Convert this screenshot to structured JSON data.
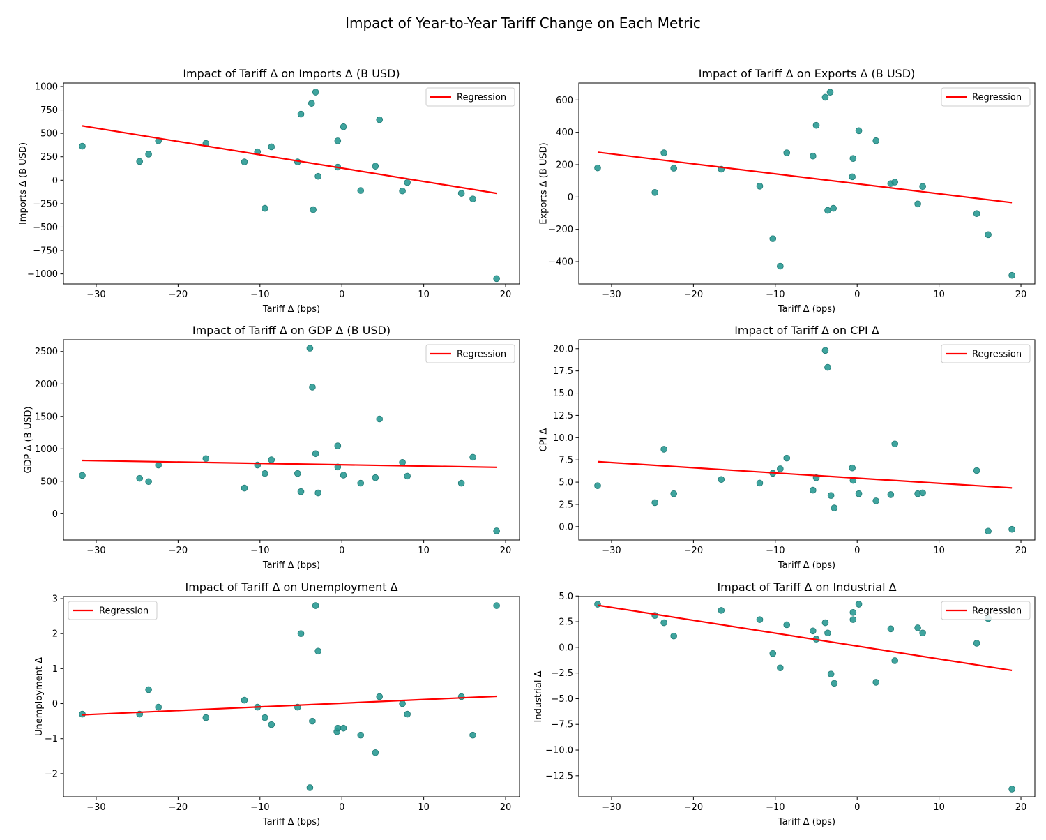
{
  "figure": {
    "suptitle": "Impact of Year-to-Year Tariff Change on Each Metric",
    "point_color": "#2a9a94",
    "point_edge": "#1f7a75",
    "line_color": "#ff0000"
  },
  "chart_data": [
    {
      "type": "scatter",
      "title": "Impact of Tariff Δ on Imports Δ (B USD)",
      "xlabel": "Tariff Δ (bps)",
      "ylabel": "Imports Δ (B USD)",
      "xlim": [
        -34,
        21.7
      ],
      "ylim": [
        -1107,
        1037
      ],
      "xticks": [
        -30,
        -20,
        -10,
        0,
        10,
        20
      ],
      "xtick_labels": [
        "−30",
        "−20",
        "−10",
        "0",
        "10",
        "20"
      ],
      "yticks": [
        -1000,
        -750,
        -500,
        -250,
        0,
        250,
        500,
        750,
        1000
      ],
      "ytick_labels": [
        "−1000",
        "−750",
        "−500",
        "−250",
        "0",
        "250",
        "500",
        "750",
        "1000"
      ],
      "legend": {
        "label": "Regression",
        "loc": "upper right"
      },
      "regression": {
        "x": [
          -31.7,
          18.9
        ],
        "y": [
          580,
          -140
        ]
      },
      "x": [
        -31.7,
        -24.7,
        -23.6,
        -22.4,
        -16.6,
        -11.9,
        -10.3,
        -9.4,
        -8.6,
        -5.4,
        -5.0,
        -3.7,
        -3.5,
        -3.2,
        -2.9,
        -0.5,
        -0.5,
        0.2,
        2.3,
        4.1,
        4.6,
        7.4,
        8.0,
        14.6,
        16.0,
        18.9
      ],
      "y": [
        363,
        200,
        278,
        420,
        393,
        195,
        302,
        -300,
        356,
        195,
        705,
        820,
        -315,
        940,
        42,
        140,
        420,
        570,
        -110,
        150,
        645,
        -115,
        -25,
        -140,
        -200,
        -1050
      ]
    },
    {
      "type": "scatter",
      "title": "Impact of Tariff Δ on Exports Δ (B USD)",
      "xlabel": "Tariff Δ (bps)",
      "ylabel": "Exports Δ (B USD)",
      "xlim": [
        -34,
        21.7
      ],
      "ylim": [
        -538,
        705
      ],
      "xticks": [
        -30,
        -20,
        -10,
        0,
        10,
        20
      ],
      "xtick_labels": [
        "−30",
        "−20",
        "−10",
        "0",
        "10",
        "20"
      ],
      "yticks": [
        -400,
        -200,
        0,
        200,
        400,
        600
      ],
      "ytick_labels": [
        "−400",
        "−200",
        "0",
        "200",
        "400",
        "600"
      ],
      "legend": {
        "label": "Regression",
        "loc": "upper right"
      },
      "regression": {
        "x": [
          -31.7,
          18.9
        ],
        "y": [
          277,
          -35
        ]
      },
      "x": [
        -31.7,
        -24.7,
        -23.6,
        -22.4,
        -16.6,
        -11.9,
        -10.3,
        -9.4,
        -8.6,
        -5.4,
        -5.0,
        -3.9,
        -3.6,
        -3.3,
        -2.9,
        -0.6,
        -0.5,
        0.2,
        2.3,
        4.1,
        4.6,
        7.4,
        8.0,
        14.6,
        16.0,
        18.9
      ],
      "y": [
        180,
        28,
        273,
        178,
        172,
        67,
        -258,
        -428,
        273,
        253,
        443,
        617,
        -83,
        648,
        -70,
        125,
        238,
        410,
        348,
        83,
        92,
        -43,
        65,
        -103,
        -233,
        -485
      ]
    },
    {
      "type": "scatter",
      "title": "Impact of Tariff Δ on GDP Δ (B USD)",
      "xlabel": "Tariff Δ (bps)",
      "ylabel": "GDP Δ (B USD)",
      "xlim": [
        -34,
        21.7
      ],
      "ylim": [
        -405,
        2680
      ],
      "xticks": [
        -30,
        -20,
        -10,
        0,
        10,
        20
      ],
      "xtick_labels": [
        "−30",
        "−20",
        "−10",
        "0",
        "10",
        "20"
      ],
      "yticks": [
        0,
        500,
        1000,
        1500,
        2000,
        2500
      ],
      "ytick_labels": [
        "0",
        "500",
        "1000",
        "1500",
        "2000",
        "2500"
      ],
      "legend": {
        "label": "Regression",
        "loc": "upper right"
      },
      "regression": {
        "x": [
          -31.7,
          18.9
        ],
        "y": [
          820,
          715
        ]
      },
      "x": [
        -31.7,
        -24.7,
        -23.6,
        -22.4,
        -16.6,
        -11.9,
        -10.3,
        -9.4,
        -8.6,
        -5.4,
        -5.0,
        -3.9,
        -3.6,
        -3.2,
        -2.9,
        -0.5,
        -0.5,
        0.2,
        2.3,
        4.1,
        4.6,
        7.4,
        8.0,
        14.6,
        16.0,
        18.9
      ],
      "y": [
        590,
        545,
        495,
        750,
        850,
        395,
        750,
        620,
        830,
        620,
        340,
        2550,
        1950,
        925,
        320,
        720,
        1045,
        595,
        470,
        555,
        1460,
        790,
        580,
        470,
        870,
        -265
      ]
    },
    {
      "type": "scatter",
      "title": "Impact of Tariff Δ on CPI Δ",
      "xlabel": "Tariff Δ (bps)",
      "ylabel": "CPI Δ",
      "xlim": [
        -34,
        21.7
      ],
      "ylim": [
        -1.5,
        21.0
      ],
      "xticks": [
        -30,
        -20,
        -10,
        0,
        10,
        20
      ],
      "xtick_labels": [
        "−30",
        "−20",
        "−10",
        "0",
        "10",
        "20"
      ],
      "yticks": [
        0.0,
        2.5,
        5.0,
        7.5,
        10.0,
        12.5,
        15.0,
        17.5,
        20.0
      ],
      "ytick_labels": [
        "0.0",
        "2.5",
        "5.0",
        "7.5",
        "10.0",
        "12.5",
        "15.0",
        "17.5",
        "20.0"
      ],
      "legend": {
        "label": "Regression",
        "loc": "upper right"
      },
      "regression": {
        "x": [
          -31.7,
          18.9
        ],
        "y": [
          7.3,
          4.35
        ]
      },
      "x": [
        -31.7,
        -24.7,
        -23.6,
        -22.4,
        -16.6,
        -11.9,
        -10.3,
        -9.4,
        -8.6,
        -5.4,
        -5.0,
        -3.9,
        -3.6,
        -3.2,
        -2.8,
        -0.6,
        -0.5,
        0.2,
        2.3,
        4.1,
        4.6,
        7.4,
        8.0,
        14.6,
        16.0,
        18.9
      ],
      "y": [
        4.6,
        2.7,
        8.7,
        3.7,
        5.3,
        4.9,
        6.0,
        6.5,
        7.7,
        4.1,
        5.5,
        19.8,
        17.9,
        3.5,
        2.1,
        6.6,
        5.2,
        3.7,
        2.9,
        3.6,
        9.3,
        3.7,
        3.8,
        6.3,
        -0.5,
        -0.3
      ]
    },
    {
      "type": "scatter",
      "title": "Impact of Tariff Δ on Unemployment Δ",
      "xlabel": "Tariff Δ (bps)",
      "ylabel": "Unemployment Δ",
      "xlim": [
        -34,
        21.7
      ],
      "ylim": [
        -2.66,
        3.06
      ],
      "xticks": [
        -30,
        -20,
        -10,
        0,
        10,
        20
      ],
      "xtick_labels": [
        "−30",
        "−20",
        "−10",
        "0",
        "10",
        "20"
      ],
      "yticks": [
        -2,
        -1,
        0,
        1,
        2,
        3
      ],
      "ytick_labels": [
        "−2",
        "−1",
        "0",
        "1",
        "2",
        "3"
      ],
      "legend": {
        "label": "Regression",
        "loc": "upper left"
      },
      "regression": {
        "x": [
          -31.7,
          18.9
        ],
        "y": [
          -0.32,
          0.21
        ]
      },
      "x": [
        -31.7,
        -24.7,
        -23.6,
        -22.4,
        -16.6,
        -11.9,
        -10.3,
        -9.4,
        -8.6,
        -5.4,
        -5.0,
        -3.9,
        -3.6,
        -3.2,
        -2.9,
        -0.6,
        -0.5,
        0.2,
        2.3,
        4.1,
        4.6,
        7.4,
        8.0,
        14.6,
        16.0,
        18.9
      ],
      "y": [
        -0.3,
        -0.3,
        0.4,
        -0.1,
        -0.4,
        0.1,
        -0.1,
        -0.4,
        -0.6,
        -0.1,
        2.0,
        -2.4,
        -0.5,
        2.8,
        1.5,
        -0.8,
        -0.7,
        -0.7,
        -0.9,
        -1.4,
        0.2,
        0.0,
        -0.3,
        0.2,
        -0.9,
        2.8
      ]
    },
    {
      "type": "scatter",
      "title": "Impact of Tariff Δ on Industrial Δ",
      "xlabel": "Tariff Δ (bps)",
      "ylabel": "Industrial Δ",
      "xlim": [
        -34,
        21.7
      ],
      "ylim": [
        -14.55,
        4.95
      ],
      "xticks": [
        -30,
        -20,
        -10,
        0,
        10,
        20
      ],
      "xtick_labels": [
        "−30",
        "−20",
        "−10",
        "0",
        "10",
        "20"
      ],
      "yticks": [
        -12.5,
        -10.0,
        -7.5,
        -5.0,
        -2.5,
        0.0,
        2.5,
        5.0
      ],
      "ytick_labels": [
        "−12.5",
        "−10.0",
        "−7.5",
        "−5.0",
        "−2.5",
        "0.0",
        "2.5",
        "5.0"
      ],
      "legend": {
        "label": "Regression",
        "loc": "upper right"
      },
      "regression": {
        "x": [
          -31.7,
          18.9
        ],
        "y": [
          4.1,
          -2.25
        ]
      },
      "x": [
        -31.7,
        -24.7,
        -23.6,
        -22.4,
        -16.6,
        -11.9,
        -10.3,
        -9.4,
        -8.6,
        -5.4,
        -5.0,
        -3.9,
        -3.6,
        -3.2,
        -2.8,
        -0.5,
        -0.5,
        0.2,
        2.3,
        4.1,
        4.6,
        7.4,
        8.0,
        14.6,
        16.0,
        18.9
      ],
      "y": [
        4.2,
        3.1,
        2.4,
        1.1,
        3.6,
        2.7,
        -0.6,
        -2.0,
        2.2,
        1.6,
        0.8,
        2.4,
        1.4,
        -2.6,
        -3.5,
        3.4,
        2.7,
        4.2,
        -3.4,
        1.8,
        -1.3,
        1.9,
        1.4,
        0.4,
        2.8,
        -13.8
      ]
    }
  ]
}
